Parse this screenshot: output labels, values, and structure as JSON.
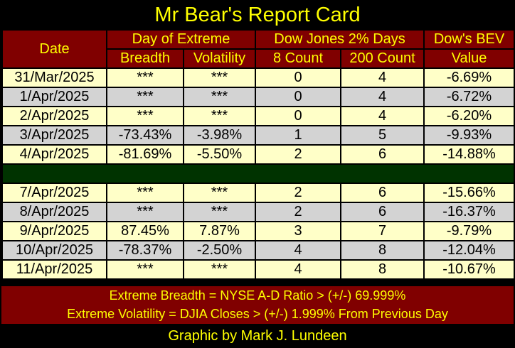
{
  "title": "Mr Bear's Report Card",
  "header": {
    "date": "Date",
    "group_extreme": "Day of Extreme",
    "group_dow2": "Dow Jones 2% Days",
    "group_bev": "Dow's BEV",
    "breadth": "Breadth",
    "volatility": "Volatility",
    "count8": "8 Count",
    "count200": "200 Count",
    "value": "Value"
  },
  "rows": [
    {
      "date": "31/Mar/2025",
      "breadth": "***",
      "volatility": "***",
      "c8": "0",
      "c200": "4",
      "bev": "-6.69%"
    },
    {
      "date": "1/Apr/2025",
      "breadth": "***",
      "volatility": "***",
      "c8": "0",
      "c200": "4",
      "bev": "-6.72%"
    },
    {
      "date": "2/Apr/2025",
      "breadth": "***",
      "volatility": "***",
      "c8": "0",
      "c200": "4",
      "bev": "-6.20%"
    },
    {
      "date": "3/Apr/2025",
      "breadth": "-73.43%",
      "volatility": "-3.98%",
      "c8": "1",
      "c200": "5",
      "bev": "-9.93%"
    },
    {
      "date": "4/Apr/2025",
      "breadth": "-81.69%",
      "volatility": "-5.50%",
      "c8": "2",
      "c200": "6",
      "bev": "-14.88%"
    },
    {
      "date": "7/Apr/2025",
      "breadth": "***",
      "volatility": "***",
      "c8": "2",
      "c200": "6",
      "bev": "-15.66%"
    },
    {
      "date": "8/Apr/2025",
      "breadth": "***",
      "volatility": "***",
      "c8": "2",
      "c200": "6",
      "bev": "-16.37%"
    },
    {
      "date": "9/Apr/2025",
      "breadth": "87.45%",
      "volatility": "7.87%",
      "c8": "3",
      "c200": "7",
      "bev": "-9.79%"
    },
    {
      "date": "10/Apr/2025",
      "breadth": "-78.37%",
      "volatility": "-2.50%",
      "c8": "4",
      "c200": "8",
      "bev": "-12.04%"
    },
    {
      "date": "11/Apr/2025",
      "breadth": "***",
      "volatility": "***",
      "c8": "4",
      "c200": "8",
      "bev": "-10.67%"
    }
  ],
  "footer": {
    "line1": "Extreme Breadth = NYSE A-D Ratio > (+/-) 69.999%",
    "line2": "Extreme Volatility = DJIA Closes > (+/-) 1.999% From Previous Day"
  },
  "credit": "Graphic by Mark J. Lundeen",
  "colors": {
    "header_bg": "#800000",
    "header_text": "#ffff00",
    "row_light": "#ffffc8",
    "row_gray": "#d3d3d3",
    "separator": "#003300",
    "background": "#000000"
  }
}
